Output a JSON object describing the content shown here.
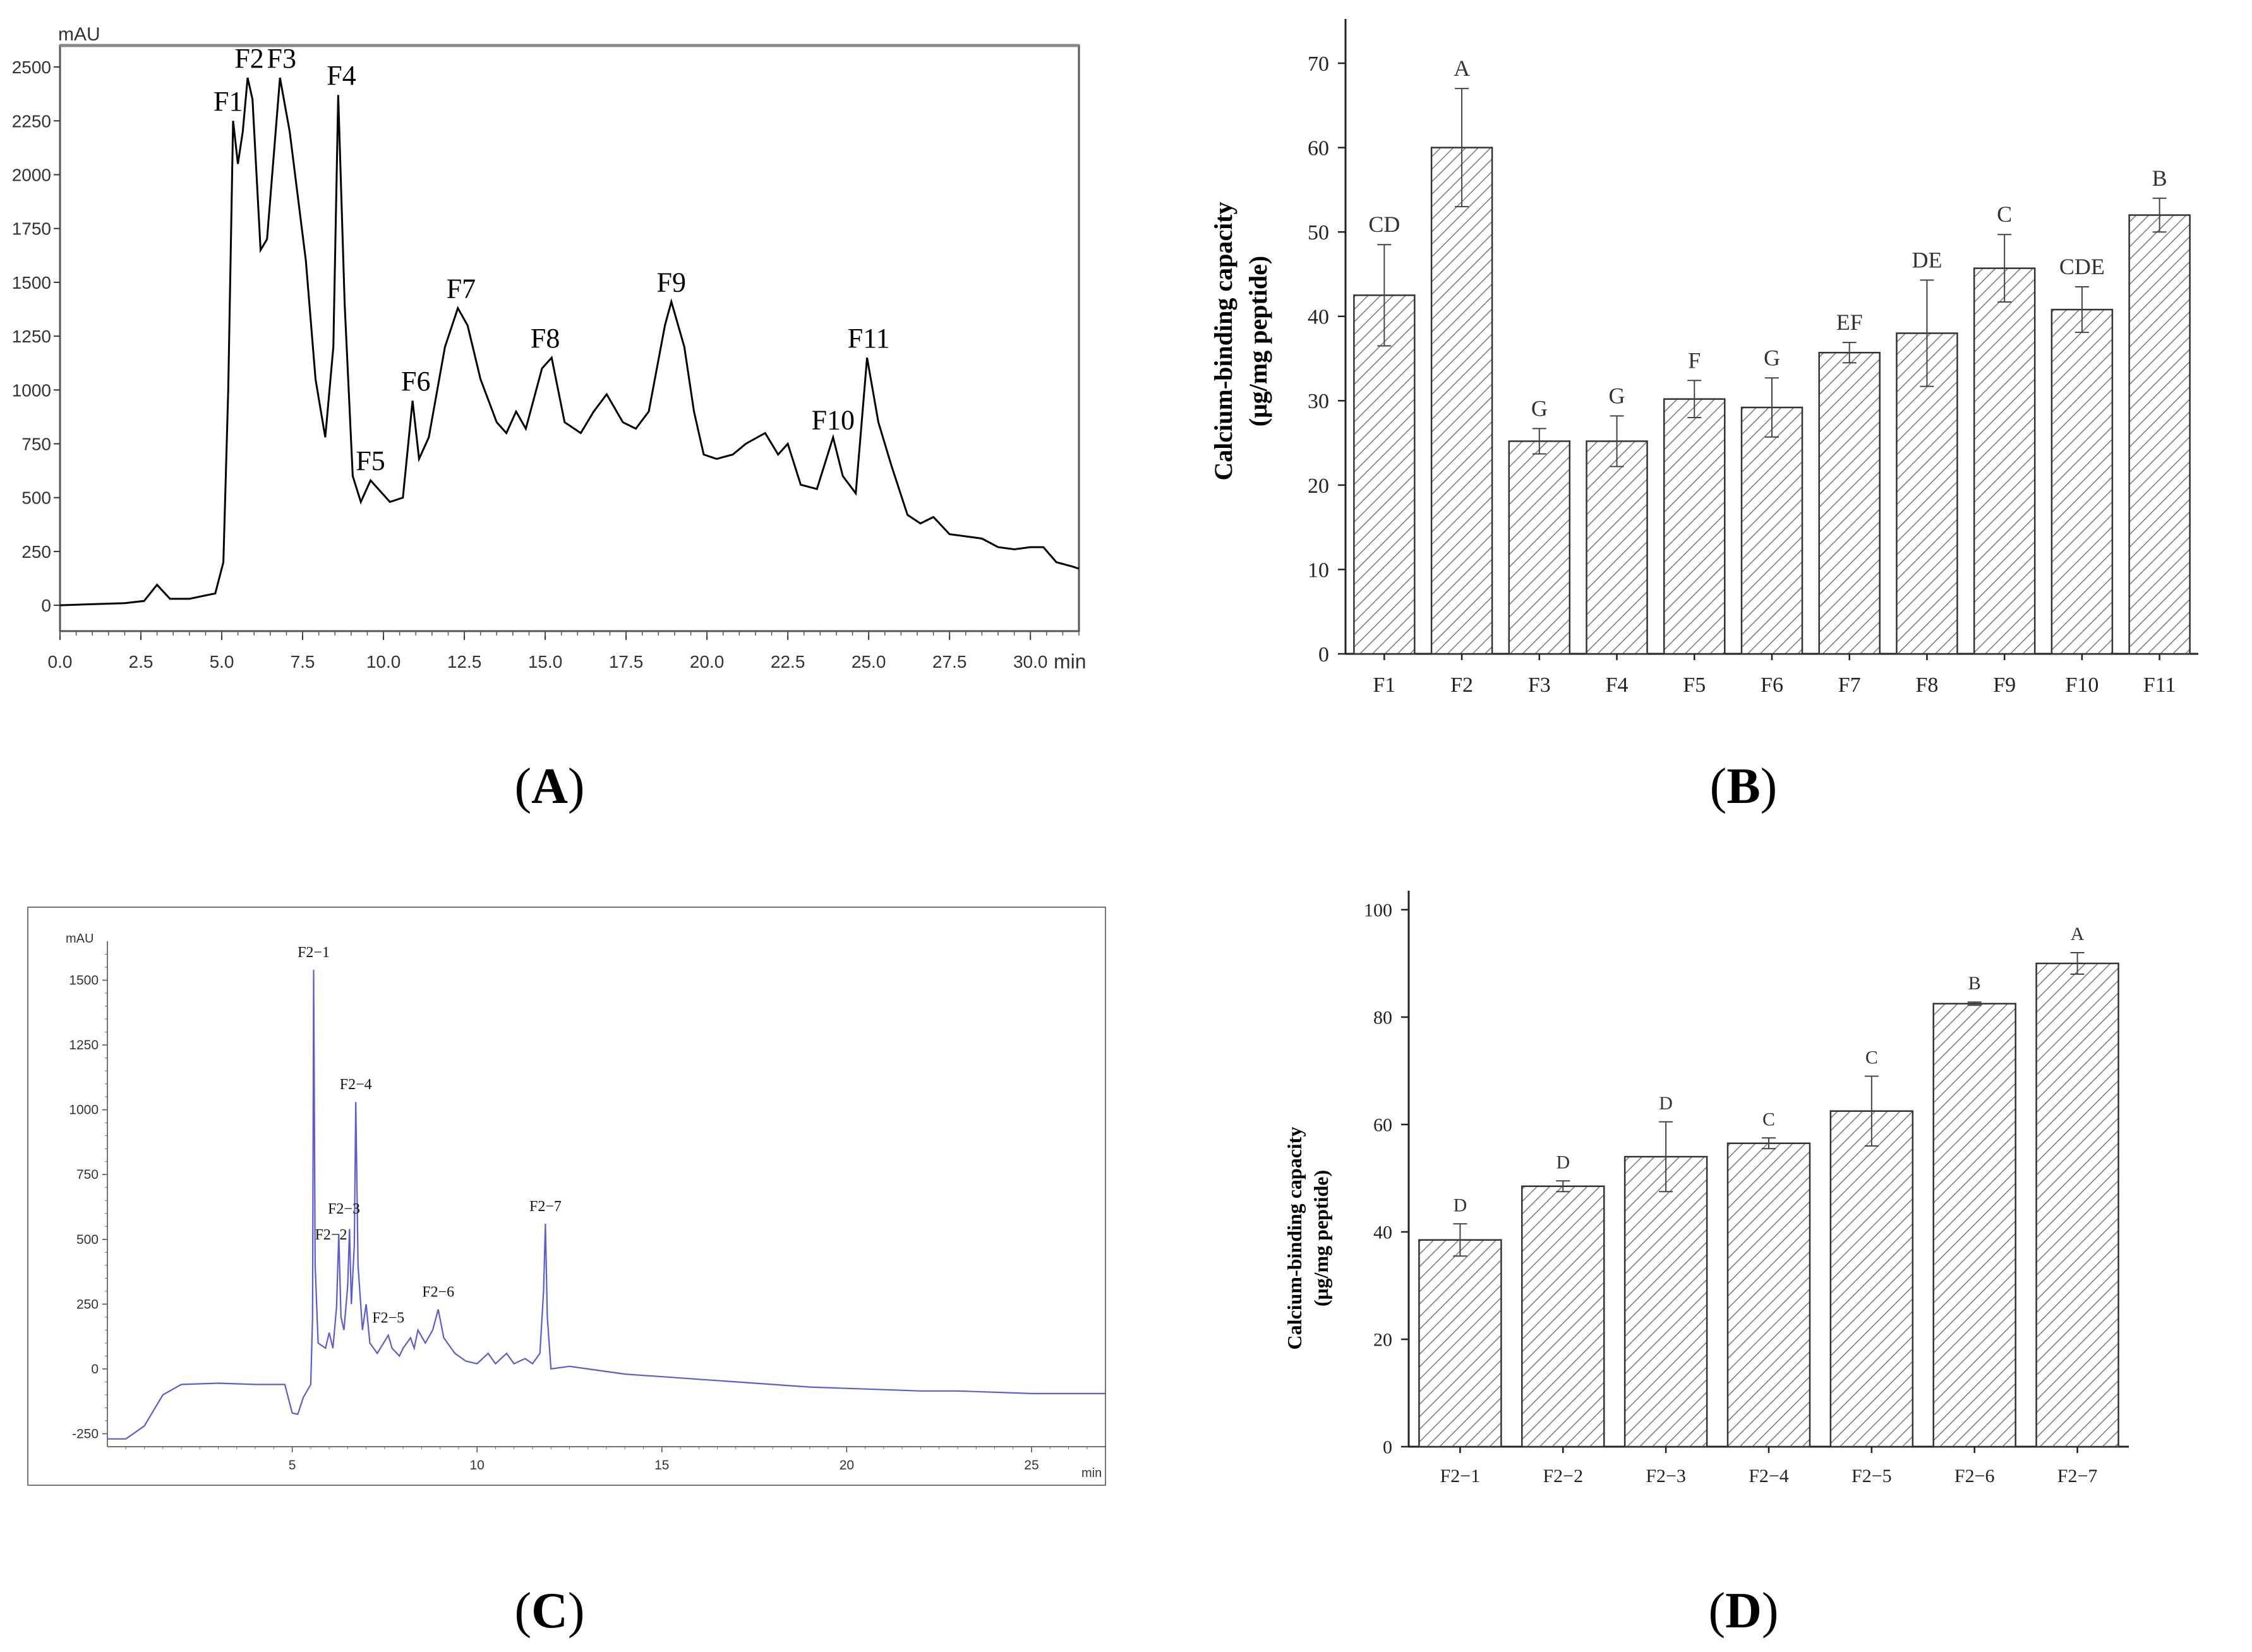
{
  "chart_data": [
    {
      "id": "A",
      "type": "line",
      "caption": "A",
      "unit_label": "mAU",
      "x_unit_label": "min",
      "xlim": [
        0,
        31.5
      ],
      "ylim": [
        -120,
        2600
      ],
      "x_ticks": [
        0.0,
        2.5,
        5.0,
        7.5,
        10.0,
        12.5,
        15.0,
        17.5,
        20.0,
        22.5,
        25.0,
        27.5,
        30.0
      ],
      "x_tick_labels": [
        "0.0",
        "2.5",
        "5.0",
        "7.5",
        "10.0",
        "12.5",
        "15.0",
        "17.5",
        "20.0",
        "22.5",
        "25.0",
        "27.5",
        "30.0"
      ],
      "y_ticks": [
        0,
        250,
        500,
        750,
        1000,
        1250,
        1500,
        1750,
        2000,
        2250,
        2500
      ],
      "y_tick_labels": [
        "0",
        "250",
        "500",
        "750",
        "1000",
        "1250",
        "1500",
        "1750",
        "2000",
        "2250",
        "2500"
      ],
      "series": [
        {
          "name": "absorbance",
          "color": "#000000",
          "points": [
            [
              0,
              0
            ],
            [
              1,
              5
            ],
            [
              2,
              10
            ],
            [
              2.6,
              20
            ],
            [
              3,
              95
            ],
            [
              3.4,
              30
            ],
            [
              4,
              30
            ],
            [
              4.8,
              55
            ],
            [
              5.05,
              200
            ],
            [
              5.2,
              1000
            ],
            [
              5.35,
              2250
            ],
            [
              5.5,
              2050
            ],
            [
              5.65,
              2200
            ],
            [
              5.8,
              2450
            ],
            [
              5.95,
              2350
            ],
            [
              6.2,
              1650
            ],
            [
              6.4,
              1700
            ],
            [
              6.8,
              2450
            ],
            [
              7.1,
              2200
            ],
            [
              7.6,
              1600
            ],
            [
              7.9,
              1050
            ],
            [
              8.2,
              780
            ],
            [
              8.45,
              1200
            ],
            [
              8.6,
              2370
            ],
            [
              8.8,
              1400
            ],
            [
              9.05,
              600
            ],
            [
              9.3,
              480
            ],
            [
              9.6,
              580
            ],
            [
              10.2,
              480
            ],
            [
              10.6,
              500
            ],
            [
              10.9,
              950
            ],
            [
              11.1,
              680
            ],
            [
              11.4,
              780
            ],
            [
              11.9,
              1200
            ],
            [
              12.3,
              1380
            ],
            [
              12.6,
              1300
            ],
            [
              13.0,
              1050
            ],
            [
              13.5,
              850
            ],
            [
              13.8,
              800
            ],
            [
              14.1,
              900
            ],
            [
              14.4,
              820
            ],
            [
              14.9,
              1100
            ],
            [
              15.2,
              1150
            ],
            [
              15.6,
              850
            ],
            [
              16.1,
              800
            ],
            [
              16.5,
              900
            ],
            [
              16.9,
              980
            ],
            [
              17.4,
              850
            ],
            [
              17.8,
              820
            ],
            [
              18.2,
              900
            ],
            [
              18.7,
              1300
            ],
            [
              18.9,
              1410
            ],
            [
              19.3,
              1200
            ],
            [
              19.6,
              900
            ],
            [
              19.9,
              700
            ],
            [
              20.3,
              680
            ],
            [
              20.8,
              700
            ],
            [
              21.2,
              750
            ],
            [
              21.8,
              800
            ],
            [
              22.2,
              700
            ],
            [
              22.5,
              750
            ],
            [
              22.9,
              560
            ],
            [
              23.4,
              540
            ],
            [
              23.9,
              780
            ],
            [
              24.2,
              600
            ],
            [
              24.6,
              520
            ],
            [
              24.95,
              1150
            ],
            [
              25.3,
              850
            ],
            [
              25.7,
              650
            ],
            [
              26.2,
              420
            ],
            [
              26.6,
              380
            ],
            [
              27.0,
              410
            ],
            [
              27.5,
              330
            ],
            [
              28.0,
              320
            ],
            [
              28.5,
              310
            ],
            [
              29.0,
              270
            ],
            [
              29.5,
              260
            ],
            [
              30.0,
              270
            ],
            [
              30.4,
              270
            ],
            [
              30.8,
              200
            ],
            [
              31.3,
              180
            ],
            [
              31.5,
              170
            ]
          ]
        }
      ],
      "annotations": [
        {
          "text": "F1",
          "x": 5.2,
          "y": 2280
        },
        {
          "text": "F2",
          "x": 5.85,
          "y": 2480
        },
        {
          "text": "F3",
          "x": 6.85,
          "y": 2480
        },
        {
          "text": "F4",
          "x": 8.7,
          "y": 2400
        },
        {
          "text": "F5",
          "x": 9.6,
          "y": 610
        },
        {
          "text": "F6",
          "x": 11.0,
          "y": 980
        },
        {
          "text": "F7",
          "x": 12.4,
          "y": 1410
        },
        {
          "text": "F8",
          "x": 15.0,
          "y": 1180
        },
        {
          "text": "F9",
          "x": 18.9,
          "y": 1440
        },
        {
          "text": "F10",
          "x": 23.9,
          "y": 800
        },
        {
          "text": "F11",
          "x": 25.0,
          "y": 1180
        }
      ]
    },
    {
      "id": "B",
      "type": "bar",
      "caption": "B",
      "ylabel_line1": "Calcium-binding capacity",
      "ylabel_line2": "(μg/mg peptide)",
      "ylim": [
        0,
        73
      ],
      "y_ticks": [
        0,
        10,
        20,
        30,
        40,
        50,
        60,
        70
      ],
      "y_tick_labels": [
        "0",
        "10",
        "20",
        "30",
        "40",
        "50",
        "60",
        "70"
      ],
      "categories": [
        "F1",
        "F2",
        "F3",
        "F4",
        "F5",
        "F6",
        "F7",
        "F8",
        "F9",
        "F10",
        "F11"
      ],
      "values": [
        42.5,
        60,
        25.2,
        25.2,
        30.2,
        29.2,
        35.7,
        38,
        45.7,
        40.8,
        52
      ],
      "errors": [
        6,
        7,
        1.5,
        3,
        2.2,
        3.5,
        1.2,
        6.3,
        4,
        2.7,
        2
      ],
      "letters": [
        "CD",
        "A",
        "G",
        "G",
        "F",
        "G",
        "EF",
        "DE",
        "C",
        "CDE",
        "B"
      ]
    },
    {
      "id": "C",
      "type": "line",
      "caption": "C",
      "unit_label": "mAU",
      "x_unit_label": "min",
      "xlim": [
        0,
        27
      ],
      "ylim": [
        -300,
        1650
      ],
      "x_ticks": [
        5,
        10,
        15,
        20,
        25
      ],
      "x_tick_labels": [
        "5",
        "10",
        "15",
        "20",
        "25"
      ],
      "y_ticks": [
        -250,
        0,
        250,
        500,
        750,
        1000,
        1250,
        1500
      ],
      "y_tick_labels": [
        "-250",
        "0",
        "250",
        "500",
        "750",
        "1000",
        "1250",
        "1500"
      ],
      "series": [
        {
          "name": "absorbance",
          "color": "#5b5bd6",
          "points": [
            [
              0,
              -270
            ],
            [
              0.5,
              -270
            ],
            [
              1,
              -220
            ],
            [
              1.5,
              -100
            ],
            [
              2,
              -60
            ],
            [
              3,
              -55
            ],
            [
              4,
              -60
            ],
            [
              4.8,
              -60
            ],
            [
              5,
              -170
            ],
            [
              5.15,
              -175
            ],
            [
              5.3,
              -110
            ],
            [
              5.5,
              -60
            ],
            [
              5.55,
              200
            ],
            [
              5.58,
              1540
            ],
            [
              5.62,
              400
            ],
            [
              5.7,
              100
            ],
            [
              5.9,
              80
            ],
            [
              6.0,
              140
            ],
            [
              6.1,
              80
            ],
            [
              6.2,
              240
            ],
            [
              6.26,
              520
            ],
            [
              6.32,
              200
            ],
            [
              6.4,
              150
            ],
            [
              6.5,
              320
            ],
            [
              6.55,
              540
            ],
            [
              6.6,
              250
            ],
            [
              6.68,
              480
            ],
            [
              6.72,
              1030
            ],
            [
              6.78,
              400
            ],
            [
              6.9,
              150
            ],
            [
              7.0,
              250
            ],
            [
              7.1,
              100
            ],
            [
              7.3,
              60
            ],
            [
              7.6,
              130
            ],
            [
              7.7,
              80
            ],
            [
              7.9,
              50
            ],
            [
              8.0,
              80
            ],
            [
              8.2,
              120
            ],
            [
              8.3,
              80
            ],
            [
              8.4,
              150
            ],
            [
              8.6,
              100
            ],
            [
              8.8,
              150
            ],
            [
              8.95,
              230
            ],
            [
              9.1,
              120
            ],
            [
              9.4,
              60
            ],
            [
              9.7,
              30
            ],
            [
              10,
              20
            ],
            [
              10.3,
              60
            ],
            [
              10.5,
              20
            ],
            [
              10.8,
              60
            ],
            [
              11.0,
              20
            ],
            [
              11.3,
              40
            ],
            [
              11.5,
              20
            ],
            [
              11.7,
              60
            ],
            [
              11.8,
              300
            ],
            [
              11.85,
              560
            ],
            [
              11.9,
              200
            ],
            [
              12.0,
              0
            ],
            [
              12.5,
              10
            ],
            [
              13,
              0
            ],
            [
              14,
              -20
            ],
            [
              15,
              -30
            ],
            [
              16,
              -40
            ],
            [
              17,
              -50
            ],
            [
              18,
              -60
            ],
            [
              19,
              -70
            ],
            [
              20,
              -75
            ],
            [
              21,
              -80
            ],
            [
              22,
              -85
            ],
            [
              23,
              -85
            ],
            [
              24,
              -90
            ],
            [
              25,
              -95
            ],
            [
              26,
              -95
            ],
            [
              27,
              -95
            ]
          ]
        }
      ],
      "annotations": [
        {
          "text": "F2−1",
          "x": 5.58,
          "y": 1570
        },
        {
          "text": "F2−2",
          "x": 6.05,
          "y": 480
        },
        {
          "text": "F2−3",
          "x": 6.4,
          "y": 580
        },
        {
          "text": "F2−4",
          "x": 6.72,
          "y": 1060
        },
        {
          "text": "F2−5",
          "x": 7.6,
          "y": 160
        },
        {
          "text": "F2−6",
          "x": 8.95,
          "y": 260
        },
        {
          "text": "F2−7",
          "x": 11.85,
          "y": 590
        }
      ]
    },
    {
      "id": "D",
      "type": "bar",
      "caption": "D",
      "ylabel_line1": "Calcium-binding capacity",
      "ylabel_line2": "(μg/mg peptide)",
      "ylim": [
        0,
        100
      ],
      "y_ticks": [
        0,
        20,
        40,
        60,
        80,
        100
      ],
      "y_tick_labels": [
        "0",
        "20",
        "40",
        "60",
        "80",
        "100"
      ],
      "categories": [
        "F2−1",
        "F2−2",
        "F2−3",
        "F2−4",
        "F2−5",
        "F2−6",
        "F2−7"
      ],
      "values": [
        38.5,
        48.5,
        54,
        56.5,
        62.5,
        82.5,
        90
      ],
      "errors": [
        3,
        1,
        6.5,
        1,
        6.5,
        0.3,
        2
      ],
      "letters": [
        "D",
        "D",
        "D",
        "C",
        "C",
        "B",
        "A"
      ]
    }
  ]
}
